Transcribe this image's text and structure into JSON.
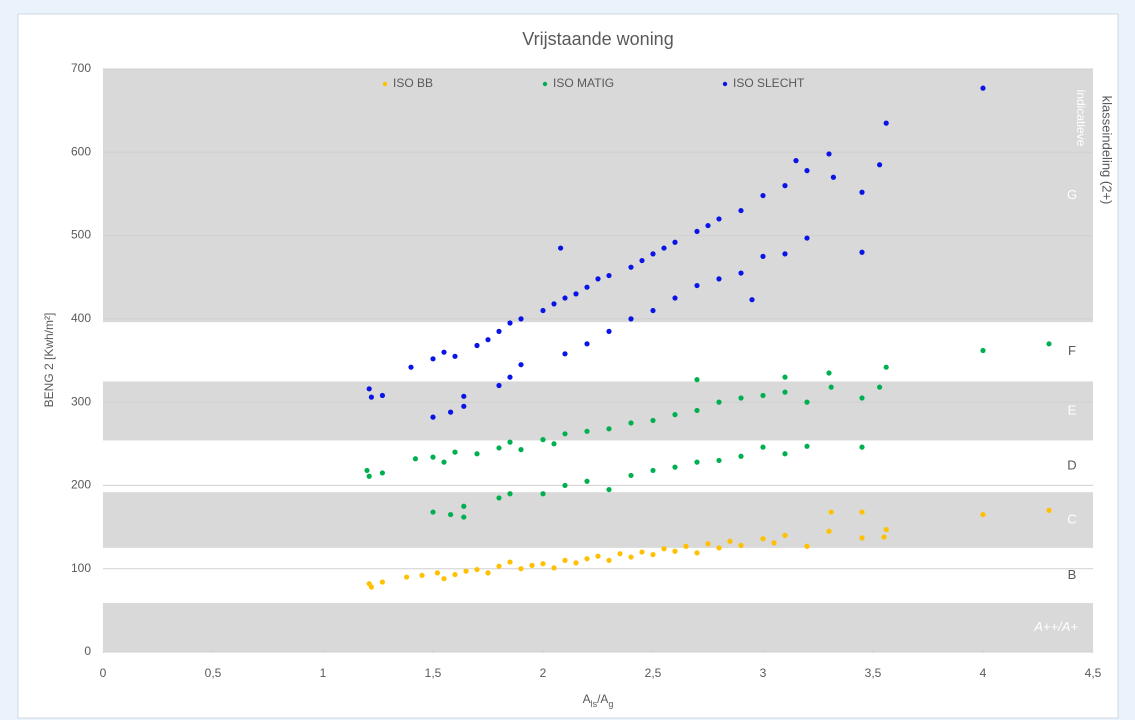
{
  "chart_data": {
    "type": "scatter",
    "title": "Vrijstaande woning",
    "y_label": "BENG 2 [Kwh/m²]",
    "x_label": [
      {
        "text": "A"
      },
      {
        "text": "ls",
        "sub": true
      },
      {
        "text": "/A"
      },
      {
        "text": "g",
        "sub": true
      }
    ],
    "annotations": [
      "indicatieve",
      "klasseindeling (2+)"
    ],
    "xlim": [
      0,
      4.5
    ],
    "xticks": [
      0,
      {
        "value": 0.5,
        "label": "0,5"
      },
      1,
      {
        "value": 1.5,
        "label": "1,5"
      },
      2,
      {
        "value": 2.5,
        "label": "2,5"
      },
      3,
      {
        "value": 3.5,
        "label": "3,5"
      },
      4,
      {
        "value": 4.5,
        "label": "4,5"
      }
    ],
    "ylim": [
      0,
      700
    ],
    "yticks": [
      0,
      100,
      200,
      300,
      400,
      500,
      600,
      700
    ],
    "grid": true,
    "legend": "top",
    "bands": [
      {
        "from": 0,
        "to": 59,
        "label": "A++/A+",
        "color": "#d9d9d9"
      },
      {
        "from": 59,
        "to": 125,
        "label": "B",
        "color": "#ffffff"
      },
      {
        "from": 125,
        "to": 192,
        "label": "C",
        "color": "#d9d9d9"
      },
      {
        "from": 192,
        "to": 254,
        "label": "D",
        "color": "#ffffff"
      },
      {
        "from": 254,
        "to": 325,
        "label": "E",
        "color": "#d9d9d9"
      },
      {
        "from": 325,
        "to": 396,
        "label": "F",
        "color": "#ffffff"
      },
      {
        "from": 396,
        "to": 700,
        "label": "G",
        "color": "#d9d9d9"
      }
    ],
    "series": [
      {
        "name": "ISO BB",
        "color": "#ffc000",
        "x": [
          1.21,
          1.22,
          1.27,
          1.38,
          1.45,
          1.52,
          1.55,
          1.6,
          1.65,
          1.7,
          1.75,
          1.8,
          1.85,
          1.9,
          1.95,
          2.0,
          2.05,
          2.1,
          2.15,
          2.2,
          2.25,
          2.3,
          2.35,
          2.4,
          2.45,
          2.5,
          2.55,
          2.6,
          2.65,
          2.7,
          2.75,
          2.8,
          2.85,
          2.9,
          3.0,
          3.05,
          3.1,
          3.2,
          3.3,
          3.31,
          3.45,
          3.45,
          3.55,
          3.56,
          4.0,
          4.3
        ],
        "values": [
          82,
          78,
          84,
          90,
          92,
          95,
          88,
          93,
          97,
          99,
          95,
          103,
          108,
          100,
          104,
          106,
          101,
          110,
          107,
          112,
          115,
          110,
          118,
          114,
          120,
          117,
          124,
          121,
          127,
          119,
          130,
          125,
          133,
          128,
          136,
          131,
          140,
          127,
          145,
          168,
          168,
          137,
          138,
          147,
          165,
          170
        ]
      },
      {
        "name": "ISO MATIG",
        "color": "#00b050",
        "x": [
          1.2,
          1.21,
          1.27,
          1.42,
          1.5,
          1.55,
          1.6,
          1.7,
          1.8,
          1.85,
          1.9,
          2.0,
          2.05,
          2.1,
          2.2,
          2.3,
          2.4,
          2.5,
          2.6,
          2.7,
          2.7,
          2.8,
          2.9,
          3.0,
          3.1,
          3.1,
          3.2,
          3.3,
          3.31,
          3.45,
          3.53,
          3.56,
          4.0,
          4.3,
          1.5,
          1.58,
          1.64,
          1.64,
          1.8,
          1.85,
          2.0,
          2.1,
          2.2,
          2.3,
          2.4,
          2.5,
          2.6,
          2.7,
          2.8,
          2.9,
          3.0,
          3.1,
          3.2,
          3.45
        ],
        "values": [
          218,
          211,
          215,
          232,
          234,
          228,
          240,
          238,
          245,
          252,
          243,
          255,
          250,
          262,
          265,
          268,
          275,
          278,
          285,
          290,
          327,
          300,
          305,
          308,
          312,
          330,
          300,
          335,
          318,
          305,
          318,
          342,
          362,
          370,
          168,
          165,
          162,
          175,
          185,
          190,
          190,
          200,
          205,
          195,
          212,
          218,
          222,
          228,
          230,
          235,
          246,
          238,
          247,
          246
        ]
      },
      {
        "name": "ISO SLECHT",
        "color": "#0a14e6",
        "x": [
          1.4,
          1.5,
          1.55,
          1.6,
          1.7,
          1.75,
          1.8,
          1.85,
          1.9,
          2.0,
          2.05,
          2.1,
          2.15,
          2.2,
          2.25,
          2.3,
          2.4,
          2.45,
          2.5,
          2.55,
          2.6,
          2.7,
          2.75,
          2.8,
          2.9,
          3.0,
          3.1,
          3.2,
          3.15,
          3.3,
          3.32,
          3.45,
          3.53,
          3.56,
          4.0,
          2.08,
          1.21,
          1.22,
          1.27,
          1.5,
          1.58,
          1.64,
          1.64,
          1.8,
          1.85,
          1.9,
          2.1,
          2.2,
          2.3,
          2.4,
          2.5,
          2.6,
          2.7,
          2.8,
          2.9,
          2.95,
          3.0,
          3.1,
          3.2,
          3.45
        ],
        "values": [
          342,
          352,
          360,
          355,
          368,
          375,
          385,
          395,
          400,
          410,
          418,
          425,
          430,
          438,
          448,
          452,
          462,
          470,
          478,
          485,
          492,
          505,
          512,
          520,
          530,
          548,
          560,
          578,
          590,
          598,
          570,
          552,
          585,
          635,
          677,
          485,
          316,
          306,
          308,
          282,
          288,
          307,
          295,
          320,
          330,
          345,
          358,
          370,
          385,
          400,
          410,
          425,
          440,
          448,
          455,
          423,
          475,
          478,
          497,
          480
        ]
      }
    ]
  }
}
